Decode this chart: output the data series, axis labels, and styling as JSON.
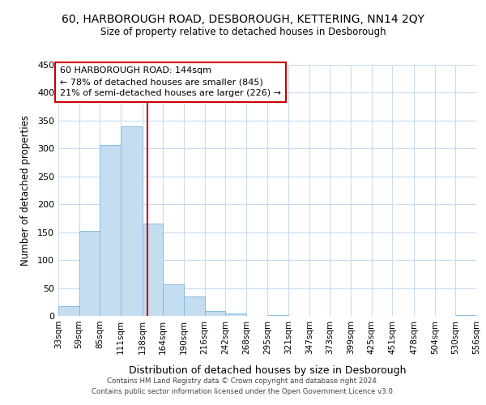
{
  "title": "60, HARBOROUGH ROAD, DESBOROUGH, KETTERING, NN14 2QY",
  "subtitle": "Size of property relative to detached houses in Desborough",
  "xlabel": "Distribution of detached houses by size in Desborough",
  "ylabel": "Number of detached properties",
  "bar_color": "#c5ddf0",
  "bar_edge_color": "#88bbdd",
  "vline_color": "#cc0000",
  "vline_x": 144,
  "annotation_line1": "60 HARBOROUGH ROAD: 144sqm",
  "annotation_line2": "← 78% of detached houses are smaller (845)",
  "annotation_line3": "21% of semi-detached houses are larger (226) →",
  "bin_edges": [
    33,
    59,
    85,
    111,
    138,
    164,
    190,
    216,
    242,
    268,
    295,
    321,
    347,
    373,
    399,
    425,
    451,
    478,
    504,
    530,
    556
  ],
  "bin_heights": [
    18,
    152,
    306,
    340,
    166,
    57,
    35,
    9,
    4,
    0,
    1,
    0,
    0,
    0,
    0,
    0,
    0,
    0,
    0,
    2
  ],
  "tick_labels": [
    "33sqm",
    "59sqm",
    "85sqm",
    "111sqm",
    "138sqm",
    "164sqm",
    "190sqm",
    "216sqm",
    "242sqm",
    "268sqm",
    "295sqm",
    "321sqm",
    "347sqm",
    "373sqm",
    "399sqm",
    "425sqm",
    "451sqm",
    "478sqm",
    "504sqm",
    "530sqm",
    "556sqm"
  ],
  "ylim": [
    0,
    450
  ],
  "yticks": [
    0,
    50,
    100,
    150,
    200,
    250,
    300,
    350,
    400,
    450
  ],
  "footer_line1": "Contains HM Land Registry data © Crown copyright and database right 2024.",
  "footer_line2": "Contains public sector information licensed under the Open Government Licence v3.0.",
  "bg_color": "#ffffff",
  "grid_color": "#c8dcf0"
}
